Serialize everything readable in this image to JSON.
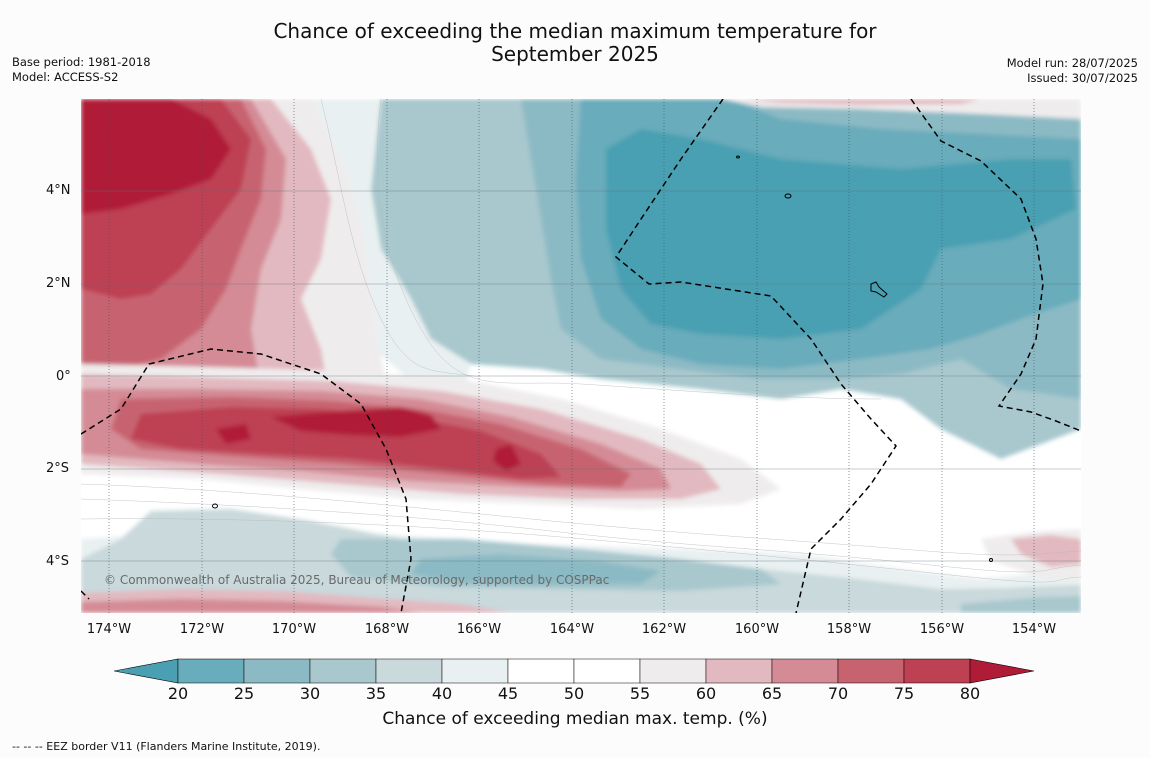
{
  "title_line1": "Chance of exceeding the median maximum temperature for",
  "title_line2": "September 2025",
  "base_period": "Base period: 1981-2018",
  "model": "Model: ACCESS-S2",
  "model_run": "Model run: 28/07/2025",
  "issued": "Issued: 30/07/2025",
  "copyright": "© Commonwealth of Australia 2025, Bureau of Meteorology, supported by COSPPac",
  "lat_labels": [
    "4°N",
    "2°N",
    "0°",
    "2°S",
    "4°S"
  ],
  "lon_labels": [
    "174°W",
    "172°W",
    "170°W",
    "168°W",
    "166°W",
    "164°W",
    "162°W",
    "160°W",
    "158°W",
    "156°W",
    "154°W"
  ],
  "colorbar": {
    "title": "Chance of exceeding median max. temp. (%)",
    "ticks": [
      "20",
      "25",
      "30",
      "35",
      "40",
      "45",
      "50",
      "55",
      "60",
      "65",
      "70",
      "75",
      "80"
    ],
    "colors": [
      "#4aa0b2",
      "#69acbb",
      "#8cbac4",
      "#a8c8ce",
      "#c9d9dc",
      "#e9f0f1",
      "#ffffff",
      "#ffffff",
      "#efeced",
      "#e2b9c0",
      "#d48b95",
      "#c7636f",
      "#bd4152",
      "#b01c38"
    ]
  },
  "footnote": "--  --  -- EEZ border V11 (Flanders Marine Institute, 2019)."
}
